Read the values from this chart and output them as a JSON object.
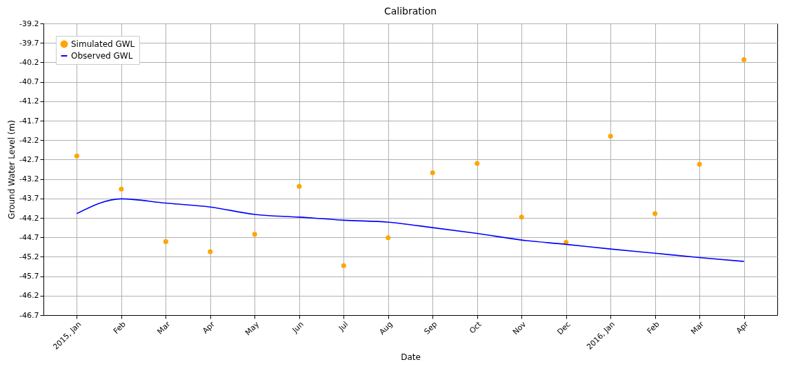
{
  "chart_data": {
    "type": "scatter",
    "title": "Calibration",
    "xlabel": "Date",
    "ylabel": "Ground Water Level (m)",
    "categories": [
      "2015, Jan",
      "Feb",
      "Mar",
      "Apr",
      "May",
      "Jun",
      "Jul",
      "Aug",
      "Sep",
      "Oct",
      "Nov",
      "Dec",
      "2016, Jan",
      "Feb",
      "Mar",
      "Apr"
    ],
    "series": [
      {
        "name": "Simulated GWL",
        "color": "#ffa500",
        "marker": "circle",
        "values": [
          -42.61,
          -43.46,
          -44.81,
          -45.07,
          -44.62,
          -43.39,
          -45.43,
          -44.71,
          -43.04,
          -42.8,
          -44.18,
          -44.83,
          -42.1,
          -44.09,
          -42.82,
          -40.13
        ]
      },
      {
        "name": "Observed GWL",
        "type": "line",
        "color": "#0000ff",
        "line_style": "solid",
        "values": [
          -44.09,
          -43.71,
          -43.82,
          -43.92,
          -44.11,
          -44.18,
          -44.26,
          -44.31,
          -44.45,
          -44.6,
          -44.77,
          -44.88,
          -45.0,
          -45.11,
          -45.22,
          -45.32
        ]
      }
    ],
    "ylim": [
      -46.7,
      -39.2
    ],
    "yticks": [
      -46.7,
      -46.2,
      -45.7,
      -45.2,
      -44.7,
      -44.2,
      -43.7,
      -43.2,
      -42.7,
      -42.2,
      -41.7,
      -41.2,
      -40.7,
      -40.2,
      -39.7,
      -39.2
    ],
    "grid": true,
    "legend": "top left"
  }
}
